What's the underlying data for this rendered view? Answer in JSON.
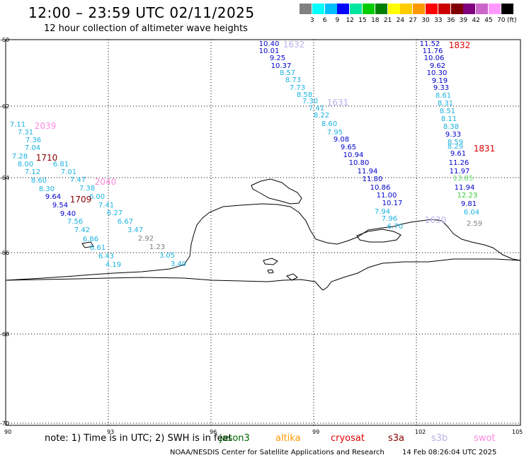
{
  "header": {
    "title": "12:00 – 23:59 UTC 02/11/2025",
    "subtitle": "12 hour collection of altimeter wave heights"
  },
  "colorbar": {
    "unit": "(ft)",
    "colors": [
      "#808080",
      "#00ffff",
      "#00bfff",
      "#0000ff",
      "#00e5a0",
      "#00cc00",
      "#008000",
      "#ffff00",
      "#ffcc00",
      "#ff9900",
      "#ff0000",
      "#cc0000",
      "#800000",
      "#800080",
      "#cc66cc",
      "#ff99ff",
      "#000000"
    ],
    "labels": [
      "3",
      "6",
      "9",
      "12",
      "15",
      "18",
      "21",
      "24",
      "27",
      "30",
      "33",
      "36",
      "39",
      "42",
      "45",
      "70"
    ]
  },
  "axes": {
    "lon_ticks": [
      "90",
      "93",
      "96",
      "99",
      "102",
      "105"
    ],
    "lat_ticks": [
      "-60",
      "-62",
      "-64",
      "-66",
      "-68",
      "-70"
    ]
  },
  "tracks": [
    {
      "time": "1632",
      "color": "#b8b0e8",
      "points": [
        {
          "v": "10.40",
          "c": "#0000cc"
        },
        {
          "v": "10.01",
          "c": "#0000cc"
        },
        {
          "v": "9.25",
          "c": "#0000cc"
        },
        {
          "v": "10.37",
          "c": "#0000cc"
        },
        {
          "v": "8.57",
          "c": "#1ab2e0"
        },
        {
          "v": "8.73",
          "c": "#1ab2e0"
        },
        {
          "v": "7.73",
          "c": "#1ab2e0"
        },
        {
          "v": "8.58",
          "c": "#1ab2e0"
        },
        {
          "v": "7.30",
          "c": "#1ab2e0"
        },
        {
          "v": "7.41",
          "c": "#1ab2e0"
        },
        {
          "v": "8.22",
          "c": "#1ab2e0"
        },
        {
          "v": "8.60",
          "c": "#1ab2e0"
        },
        {
          "v": "7.95",
          "c": "#1ab2e0"
        },
        {
          "v": "9.08",
          "c": "#0000cc"
        },
        {
          "v": "9.65",
          "c": "#0000cc"
        },
        {
          "v": "10.94",
          "c": "#0000cc"
        },
        {
          "v": "10.80",
          "c": "#0000cc"
        },
        {
          "v": "11.94",
          "c": "#0000cc"
        },
        {
          "v": "11.80",
          "c": "#0000cc"
        },
        {
          "v": "10.86",
          "c": "#0000cc"
        },
        {
          "v": "11.00",
          "c": "#0000cc"
        },
        {
          "v": "10.17",
          "c": "#0000cc"
        },
        {
          "v": "7.94",
          "c": "#1ab2e0"
        },
        {
          "v": "7.96",
          "c": "#1ab2e0"
        },
        {
          "v": "6.70",
          "c": "#1ab2e0"
        }
      ]
    },
    {
      "time": "1832",
      "color": "#dd0000",
      "points": [
        {
          "v": "11.52",
          "c": "#0000cc"
        },
        {
          "v": "11.76",
          "c": "#0000cc"
        },
        {
          "v": "10.06",
          "c": "#0000cc"
        },
        {
          "v": "9.62",
          "c": "#0000cc"
        },
        {
          "v": "10.30",
          "c": "#0000cc"
        },
        {
          "v": "9.19",
          "c": "#0000cc"
        },
        {
          "v": "9.33",
          "c": "#0000cc"
        },
        {
          "v": "8.61",
          "c": "#1ab2e0"
        },
        {
          "v": "8.31",
          "c": "#1ab2e0"
        },
        {
          "v": "8.51",
          "c": "#1ab2e0"
        },
        {
          "v": "8.11",
          "c": "#1ab2e0"
        },
        {
          "v": "8.38",
          "c": "#1ab2e0"
        },
        {
          "v": "9.33",
          "c": "#0000cc"
        },
        {
          "v": "8.59",
          "c": "#1ab2e0"
        },
        {
          "v": "8.29",
          "c": "#1ab2e0"
        },
        {
          "v": "9.61",
          "c": "#0000cc"
        },
        {
          "v": "11.26",
          "c": "#0000cc"
        },
        {
          "v": "11.97",
          "c": "#0000cc"
        },
        {
          "v": "13.85",
          "c": "#66dd66"
        },
        {
          "v": "11.94",
          "c": "#0000cc"
        },
        {
          "v": "12.23",
          "c": "#33cc33"
        },
        {
          "v": "9.81",
          "c": "#0000cc"
        },
        {
          "v": "6.04",
          "c": "#1ab2e0"
        },
        {
          "v": "2.59",
          "c": "#808080"
        }
      ]
    },
    {
      "time": "2039",
      "color": "#ff88dd",
      "points": [
        {
          "v": "7.11",
          "c": "#1ab2e0"
        },
        {
          "v": "7.31",
          "c": "#1ab2e0"
        },
        {
          "v": "7.36",
          "c": "#1ab2e0"
        },
        {
          "v": "7.04",
          "c": "#1ab2e0"
        },
        {
          "v": "7.28",
          "c": "#1ab2e0"
        },
        {
          "v": "8.00",
          "c": "#1ab2e0"
        },
        {
          "v": "7.12",
          "c": "#1ab2e0"
        },
        {
          "v": "8.60",
          "c": "#1ab2e0"
        },
        {
          "v": "8.30",
          "c": "#1ab2e0"
        },
        {
          "v": "9.64",
          "c": "#0000cc"
        },
        {
          "v": "9.54",
          "c": "#0000cc"
        },
        {
          "v": "9.40",
          "c": "#0000cc"
        },
        {
          "v": "7.56",
          "c": "#1ab2e0"
        },
        {
          "v": "7.42",
          "c": "#1ab2e0"
        },
        {
          "v": "6.86",
          "c": "#1ab2e0"
        },
        {
          "v": "6.61",
          "c": "#1ab2e0"
        },
        {
          "v": "6.43",
          "c": "#1ab2e0"
        },
        {
          "v": "4.19",
          "c": "#1ab2e0"
        }
      ]
    },
    {
      "time": "1710",
      "color": "#880000",
      "points": [
        {
          "v": "6.81",
          "c": "#1ab2e0"
        },
        {
          "v": "7.01",
          "c": "#1ab2e0"
        },
        {
          "v": "7.47",
          "c": "#1ab2e0"
        },
        {
          "v": "7.38",
          "c": "#1ab2e0"
        },
        {
          "v": "6.00",
          "c": "#1ab2e0"
        },
        {
          "v": "7.41",
          "c": "#1ab2e0"
        },
        {
          "v": "6.27",
          "c": "#1ab2e0"
        },
        {
          "v": "6.67",
          "c": "#1ab2e0"
        },
        {
          "v": "3.47",
          "c": "#1ab2e0"
        },
        {
          "v": "2.92",
          "c": "#808080"
        },
        {
          "v": "1.23",
          "c": "#808080"
        },
        {
          "v": "3.05",
          "c": "#1ab2e0"
        },
        {
          "v": "3.40",
          "c": "#1ab2e0"
        }
      ]
    }
  ],
  "pass_labels": [
    {
      "text": "1632",
      "c": "#b8b0e8"
    },
    {
      "text": "1631",
      "c": "#b8b0e8"
    },
    {
      "text": "1630",
      "c": "#b8b0e8"
    },
    {
      "text": "1832",
      "c": "#dd0000"
    },
    {
      "text": "1831",
      "c": "#dd0000"
    },
    {
      "text": "2039",
      "c": "#ff88dd"
    },
    {
      "text": "2040",
      "c": "#ff88dd"
    },
    {
      "text": "1710",
      "c": "#880000"
    },
    {
      "text": "1709",
      "c": "#880000"
    }
  ],
  "footer": {
    "note": "note: 1) Time is in UTC; 2) SWH is in feet",
    "satellites": [
      {
        "name": "jason3",
        "color": "#006600"
      },
      {
        "name": "altika",
        "color": "#ff9900"
      },
      {
        "name": "cryosat",
        "color": "#dd0000"
      },
      {
        "name": "s3a",
        "color": "#880000"
      },
      {
        "name": "s3b",
        "color": "#b8b0e8"
      },
      {
        "name": "swot",
        "color": "#ff88dd"
      }
    ],
    "credit": "NOAA/NESDIS Center for Satellite Applications and Research",
    "timestamp": "14 Feb 08:26:04 UTC 2025"
  }
}
